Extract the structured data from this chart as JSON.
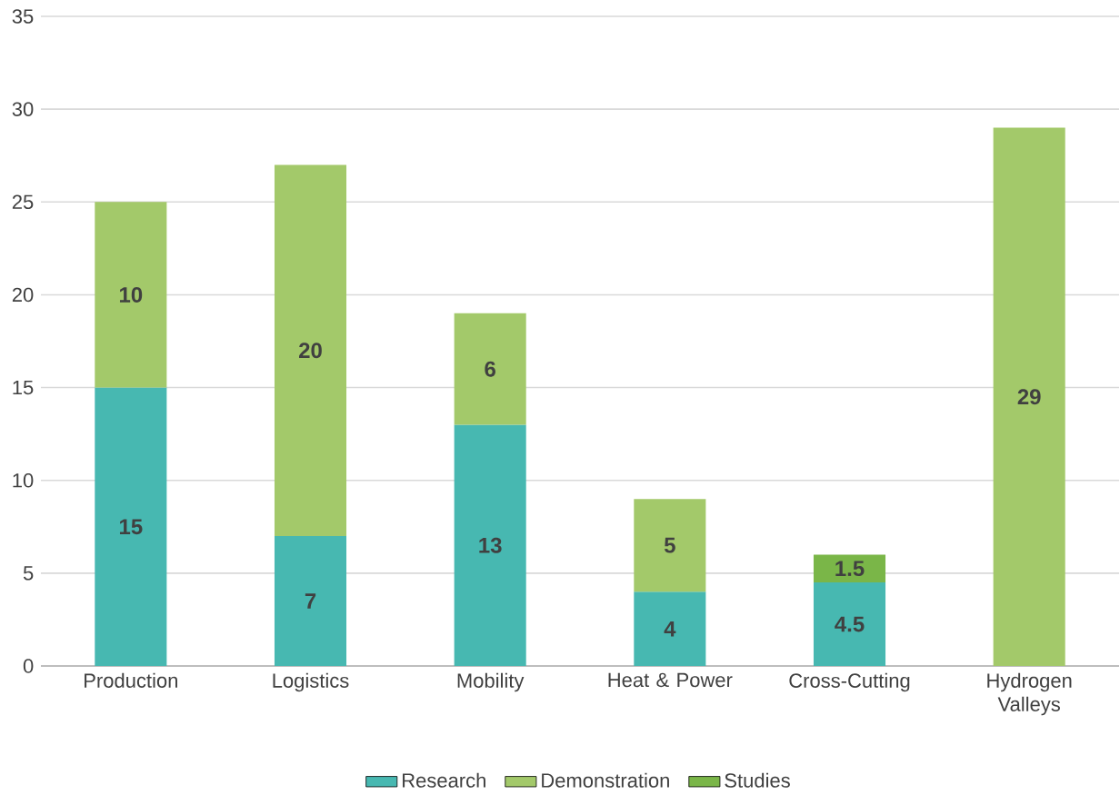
{
  "chart_data": {
    "type": "bar",
    "stacked": true,
    "categories": [
      "Production",
      "Logistics",
      "Mobility",
      "Heat & Power",
      "Cross-Cutting",
      "Hydrogen Valleys"
    ],
    "series": [
      {
        "name": "Research",
        "color": "#47b8b1",
        "values": [
          15,
          7,
          13,
          4,
          4.5,
          null
        ]
      },
      {
        "name": "Demonstration",
        "color": "#a3c96a",
        "values": [
          10,
          20,
          6,
          5,
          null,
          29
        ]
      },
      {
        "name": "Studies",
        "color": "#7ab648",
        "values": [
          null,
          null,
          null,
          null,
          1.5,
          null
        ]
      }
    ],
    "ylim": [
      0,
      35
    ],
    "yticks": [
      0,
      5,
      10,
      15,
      20,
      25,
      30,
      35
    ],
    "grid": "y",
    "legend": "bottom",
    "data_labels": true
  }
}
